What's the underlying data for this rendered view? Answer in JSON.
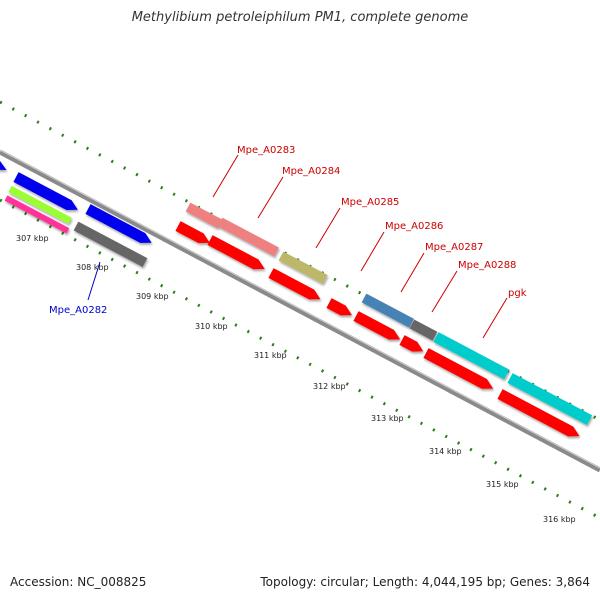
{
  "title": "Methylibium petroleiphilum PM1, complete genome",
  "accession": "Accession: NC_008825",
  "summary": "Topology: circular; Length: 4,044,195 bp; Genes: 3,864",
  "scale_labels": [
    "307 kbp",
    "308 kbp",
    "309 kbp",
    "310 kbp",
    "311 kbp",
    "312 kbp",
    "313 kbp",
    "314 kbp",
    "315 kbp",
    "316 kbp"
  ],
  "gene_labels": [
    {
      "text": "Mpe_A0282",
      "color": "#0000cc"
    },
    {
      "text": "Mpe_A0283",
      "color": "#cc0000"
    },
    {
      "text": "Mpe_A0284",
      "color": "#cc0000"
    },
    {
      "text": "Mpe_A0285",
      "color": "#cc0000"
    },
    {
      "text": "Mpe_A0286",
      "color": "#cc0000"
    },
    {
      "text": "Mpe_A0287",
      "color": "#cc0000"
    },
    {
      "text": "Mpe_A0288",
      "color": "#cc0000"
    },
    {
      "text": "pgk",
      "color": "#cc0000"
    }
  ],
  "colors": {
    "backbone": "#999999",
    "tick": "#2e7d1a",
    "cds": "#ff0000",
    "blue_feature": "#0000ee",
    "lime_feature": "#99ff33",
    "magenta_feature": "#ff3399",
    "gray_feature": "#666666",
    "pink_feature": "#ee8080",
    "olive_feature": "#bdb76b",
    "steelblue_feature": "#4682b4",
    "cyan_feature": "#00cccc"
  }
}
